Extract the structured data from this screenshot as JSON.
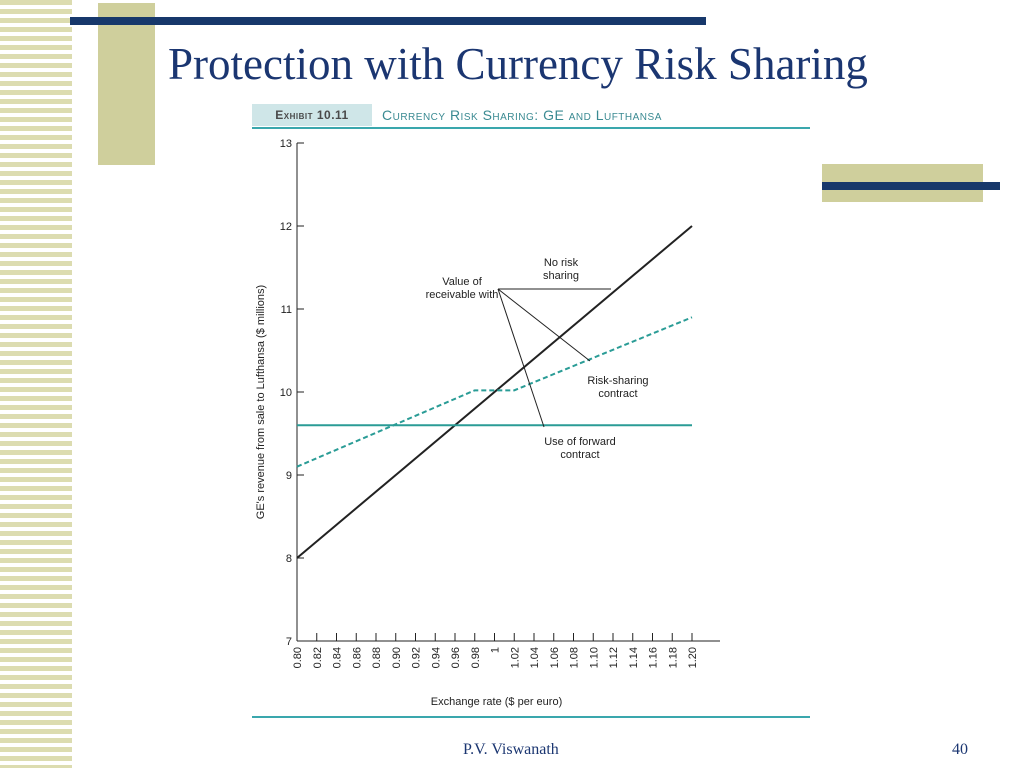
{
  "slide": {
    "title": "Protection with Currency Risk Sharing",
    "footer_author": "P.V. Viswanath",
    "page_number": "40"
  },
  "exhibit": {
    "label": "Exhibit 10.11",
    "title": "Currency Risk Sharing: GE and Lufthansa"
  },
  "colors": {
    "title": "#1b3671",
    "deco_bar": "#17386b",
    "deco_block": "#cfcf9c",
    "teal": "#2a9c96",
    "no_risk_line": "#222222"
  },
  "chart_data": {
    "type": "line",
    "title": "",
    "xlabel": "Exchange rate ($ per euro)",
    "ylabel": "GE's revenue from sale to Lufthansa ($ millions)",
    "xlim": [
      0.8,
      1.2
    ],
    "ylim": [
      7,
      13
    ],
    "x_ticks": [
      "0.80",
      "0.82",
      "0.84",
      "0.86",
      "0.88",
      "0.90",
      "0.92",
      "0.94",
      "0.96",
      "0.98",
      "1",
      "1.02",
      "1.04",
      "1.06",
      "1.08",
      "1.10",
      "1.12",
      "1.14",
      "1.16",
      "1.18",
      "1.20"
    ],
    "y_ticks": [
      "7",
      "8",
      "9",
      "10",
      "11",
      "12",
      "13"
    ],
    "series": [
      {
        "key": "no_risk",
        "style": "solid",
        "color": "#222222",
        "x": [
          0.8,
          1.2
        ],
        "y": [
          8.0,
          12.0
        ]
      },
      {
        "key": "risk_sharing",
        "style": "dashed",
        "color": "#2a9c96",
        "x": [
          0.8,
          0.98,
          1.02,
          1.2
        ],
        "y": [
          9.1,
          10.02,
          10.02,
          10.9
        ]
      },
      {
        "key": "forward",
        "style": "solid",
        "color": "#2a9c96",
        "x": [
          0.8,
          1.2
        ],
        "y": [
          9.6,
          9.6
        ]
      }
    ],
    "annotations": {
      "value_of": [
        "Value of",
        "receivable with"
      ],
      "no_risk": [
        "No risk",
        "sharing"
      ],
      "risk_sharing": [
        "Risk-sharing",
        "contract"
      ],
      "forward": [
        "Use of forward",
        "contract"
      ]
    },
    "grid": false,
    "legend": "none"
  }
}
